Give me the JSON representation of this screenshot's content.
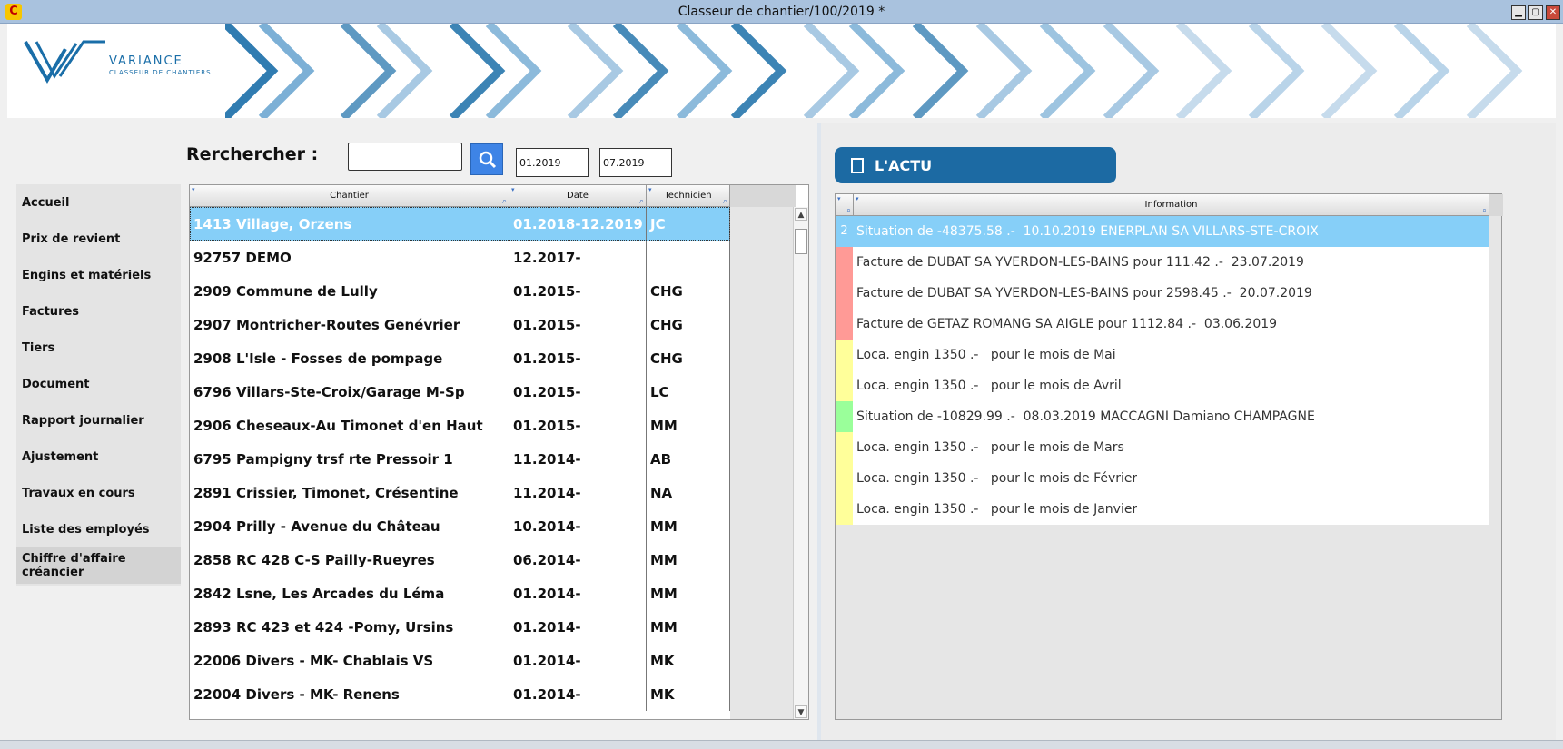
{
  "window": {
    "title": "Classeur de chantier/100/2019 *",
    "app_icon": "C",
    "controls": {
      "minimize": "▁",
      "maximize": "▢",
      "close": "✕"
    }
  },
  "logo": {
    "name": "VARIANCE",
    "subtitle": "CLASSEUR DE CHANTIERS"
  },
  "search": {
    "label": "Rerchercher :",
    "value": "",
    "date_from": "01.2019",
    "date_to": "07.2019",
    "icon": "search-icon"
  },
  "menu": {
    "items": [
      {
        "label": "Accueil"
      },
      {
        "label": "Prix de revient"
      },
      {
        "label": "Engins et matériels"
      },
      {
        "label": "Factures"
      },
      {
        "label": "Tiers"
      },
      {
        "label": "Document"
      },
      {
        "label": "Rapport journalier"
      },
      {
        "label": "Ajustement"
      },
      {
        "label": "Travaux en cours"
      },
      {
        "label": "Liste des employés"
      },
      {
        "label": "Chiffre d'affaire créancier"
      }
    ],
    "active_index": 10
  },
  "table": {
    "columns": [
      "Chantier",
      "Date",
      "Technicien"
    ],
    "selected_index": 0,
    "rows": [
      {
        "chantier": "1413 Village, Orzens",
        "date": "01.2018-12.2019",
        "tech": "JC"
      },
      {
        "chantier": "92757 DEMO",
        "date": "12.2017-",
        "tech": ""
      },
      {
        "chantier": "2909 Commune de Lully",
        "date": "01.2015-",
        "tech": "CHG"
      },
      {
        "chantier": "2907 Montricher-Routes Genévrier",
        "date": "01.2015-",
        "tech": "CHG"
      },
      {
        "chantier": "2908 L'Isle - Fosses de pompage",
        "date": "01.2015-",
        "tech": "CHG"
      },
      {
        "chantier": "6796 Villars-Ste-Croix/Garage M-Sp",
        "date": "01.2015-",
        "tech": "LC"
      },
      {
        "chantier": "2906 Cheseaux-Au Timonet d'en Haut",
        "date": "01.2015-",
        "tech": "MM"
      },
      {
        "chantier": "6795 Pampigny trsf rte Pressoir 1",
        "date": "11.2014-",
        "tech": "AB"
      },
      {
        "chantier": "2891 Crissier, Timonet, Crésentine",
        "date": "11.2014-",
        "tech": "NA"
      },
      {
        "chantier": "2904 Prilly - Avenue du Château",
        "date": "10.2014-",
        "tech": "MM"
      },
      {
        "chantier": "2858 RC 428 C-S Pailly-Rueyres",
        "date": "06.2014-",
        "tech": "MM"
      },
      {
        "chantier": "2842 Lsne, Les Arcades du Léma",
        "date": "01.2014-",
        "tech": "MM"
      },
      {
        "chantier": "2893 RC 423 et 424 -Pomy, Ursins",
        "date": "01.2014-",
        "tech": "MM"
      },
      {
        "chantier": "22006 Divers - MK- Chablais VS",
        "date": "01.2014-",
        "tech": "MK"
      },
      {
        "chantier": "22004 Divers - MK- Renens",
        "date": "01.2014-",
        "tech": "MK"
      }
    ]
  },
  "actu": {
    "title": "L'ACTU",
    "column": "Information",
    "rows": [
      {
        "marker": "2",
        "color": "#86cff8",
        "text": "Situation de -48375.58 .-  10.10.2019 ENERPLAN SA VILLARS-STE-CROIX",
        "selected": true
      },
      {
        "marker": "",
        "color": "#ff9a96",
        "text": "Facture de DUBAT SA YVERDON-LES-BAINS pour 111.42 .-  23.07.2019"
      },
      {
        "marker": "",
        "color": "#ff9a96",
        "text": "Facture de DUBAT SA YVERDON-LES-BAINS pour 2598.45 .-  20.07.2019"
      },
      {
        "marker": "",
        "color": "#ff9a96",
        "text": "Facture de GETAZ ROMANG SA AIGLE pour 1112.84 .-  03.06.2019"
      },
      {
        "marker": "",
        "color": "#ffff9a",
        "text": "Loca. engin 1350 .-   pour le mois de Mai"
      },
      {
        "marker": "",
        "color": "#ffff9a",
        "text": "Loca. engin 1350 .-   pour le mois de Avril"
      },
      {
        "marker": "",
        "color": "#9aff9a",
        "text": "Situation de -10829.99 .-  08.03.2019 MACCAGNI Damiano CHAMPAGNE"
      },
      {
        "marker": "",
        "color": "#ffff9a",
        "text": "Loca. engin 1350 .-   pour le mois de Mars"
      },
      {
        "marker": "",
        "color": "#ffff9a",
        "text": "Loca. engin 1350 .-   pour le mois de Février"
      },
      {
        "marker": "",
        "color": "#ffff9a",
        "text": "Loca. engin 1350 .-   pour le mois de Janvier"
      }
    ]
  }
}
